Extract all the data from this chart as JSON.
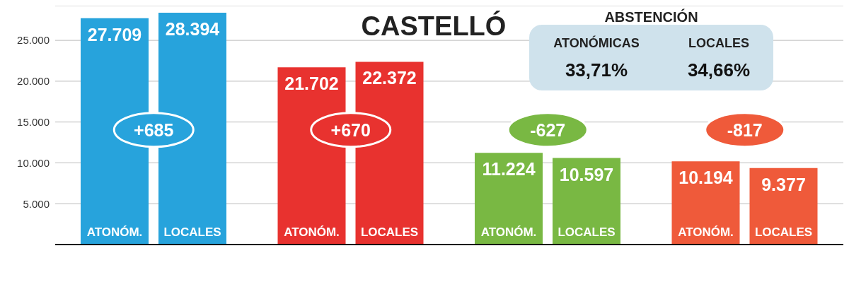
{
  "chart_data": {
    "type": "bar",
    "title": "CASTELLÓ",
    "categories": [
      null,
      null,
      null,
      null
    ],
    "series": [
      {
        "name": "ATONÓM.",
        "colors": [
          "#27a3dc",
          "#e8322f",
          "#79b843",
          "#ef5a3a"
        ],
        "values": [
          27709,
          21702,
          11224,
          10194
        ],
        "value_labels": [
          "27.709",
          "21.702",
          "11.224",
          "10.194"
        ]
      },
      {
        "name": "LOCALES",
        "colors": [
          "#27a3dc",
          "#e8322f",
          "#79b843",
          "#ef5a3a"
        ],
        "values": [
          28394,
          22372,
          10597,
          9377
        ],
        "value_labels": [
          "28.394",
          "22.372",
          "10.597",
          "9.377"
        ]
      }
    ],
    "ylim": [
      0,
      29250
    ],
    "yticks": [
      {
        "value": 5000,
        "label": "5.000"
      },
      {
        "value": 10000,
        "label": "10.000"
      },
      {
        "value": 15000,
        "label": "15.000"
      },
      {
        "value": 20000,
        "label": "20.000"
      },
      {
        "value": 25000,
        "label": "25.000"
      }
    ],
    "grid": "y",
    "annotations": [
      "+685",
      "+670",
      "-627",
      "-817",
      "ABSTENCIÓN",
      "ATONÓMICAS",
      "LOCALES",
      "33,71%",
      "34,66%"
    ]
  }
}
